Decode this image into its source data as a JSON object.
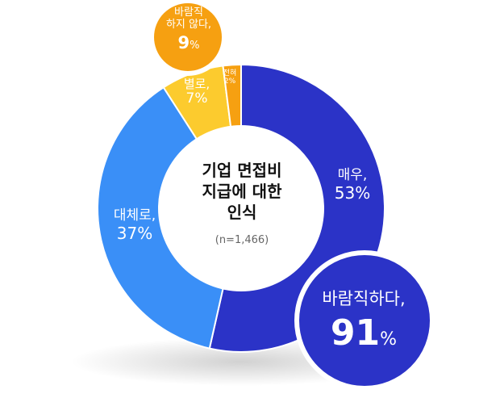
{
  "chart_data": {
    "type": "donut",
    "title_lines": [
      "기업 면접비",
      "지급에 대한",
      "인식"
    ],
    "note": "(n=1,466)",
    "slices": [
      {
        "label": "매우,",
        "value": 53,
        "value_text": "53%",
        "color": "#2b33c7"
      },
      {
        "label": "대체로,",
        "value": 37,
        "value_text": "37%",
        "color": "#3a8ff7"
      },
      {
        "label": "별로,",
        "value": 7,
        "value_text": "7%",
        "color": "#fccb2e"
      },
      {
        "label": "전혀",
        "value": 2,
        "value_text": "2%",
        "color": "#f6a011"
      }
    ],
    "groups": [
      {
        "label": "바람직하다,",
        "value": 91,
        "value_text": "91",
        "unit": "%",
        "color": "#2b33c7"
      },
      {
        "label_lines": [
          "바람직",
          "하지 않다,"
        ],
        "value": 9,
        "value_text": "9",
        "unit": "%",
        "color": "#f6a011"
      }
    ]
  }
}
